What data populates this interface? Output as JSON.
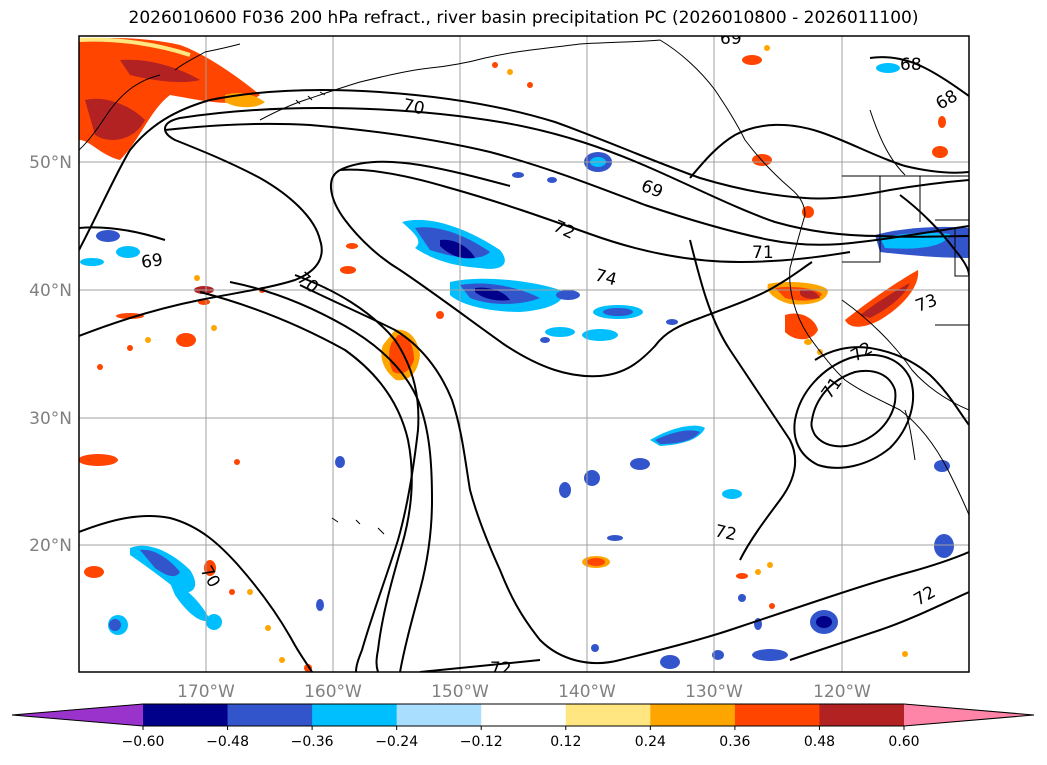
{
  "title": "2026010600 F036 200 hPa refract., river basin precipitation PC (2026010800 - 2026011100)",
  "lat_labels": [
    "50°N",
    "40°N",
    "30°N",
    "20°N"
  ],
  "lon_labels": [
    "170°W",
    "160°W",
    "150°W",
    "140°W",
    "130°W",
    "120°W"
  ],
  "contour_labels": [
    "70",
    "69",
    "72",
    "74",
    "71",
    "69",
    "70",
    "68",
    "68",
    "72",
    "71",
    "72",
    "72",
    "70",
    "72",
    "73",
    "69"
  ],
  "colorbar": {
    "ticks": [
      "−0.60",
      "−0.48",
      "−0.36",
      "−0.24",
      "−0.12",
      "0.12",
      "0.24",
      "0.36",
      "0.48",
      "0.60"
    ],
    "colors": [
      "#9933cc",
      "#00008b",
      "#3355cc",
      "#00bfff",
      "#aadeff",
      "#ffffff",
      "#ffe680",
      "#ffa500",
      "#ff4500",
      "#b22222",
      "#ff85a8"
    ]
  },
  "colors": {
    "contour": "#000000",
    "grid": "#a0a0a0",
    "coast": "#000000"
  }
}
